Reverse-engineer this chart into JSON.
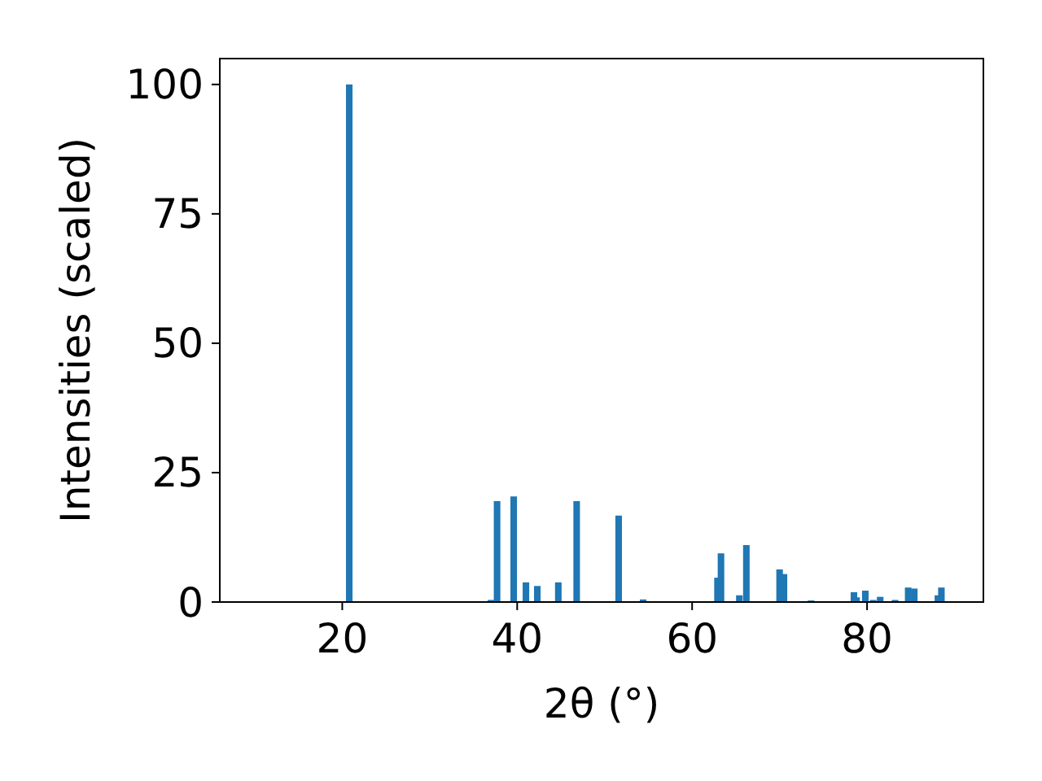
{
  "chart_data": {
    "type": "bar",
    "xlabel": "2θ (°)",
    "ylabel": "Intensities (scaled)",
    "x": [
      20.8,
      37.0,
      37.7,
      39.6,
      41.0,
      42.3,
      44.7,
      46.8,
      51.6,
      54.4,
      62.9,
      63.3,
      65.4,
      66.2,
      70.0,
      70.5,
      73.6,
      78.5,
      78.8,
      79.8,
      80.7,
      81.5,
      83.2,
      84.7,
      85.4,
      88.1,
      88.5
    ],
    "values": [
      100,
      0.4,
      19.5,
      20.4,
      3.8,
      3.1,
      3.8,
      19.5,
      16.7,
      0.5,
      4.7,
      9.4,
      1.3,
      11.0,
      6.3,
      5.4,
      0.3,
      1.9,
      0.9,
      2.2,
      0.4,
      1.0,
      0.4,
      2.8,
      2.6,
      1.3,
      2.8
    ],
    "color": "#1f77b4",
    "xlim": [
      6,
      93.3
    ],
    "xticks": [
      20,
      40,
      60,
      80
    ],
    "ylim": [
      0,
      105
    ],
    "yticks": [
      0,
      25,
      50,
      75,
      100
    ],
    "grid": false
  }
}
